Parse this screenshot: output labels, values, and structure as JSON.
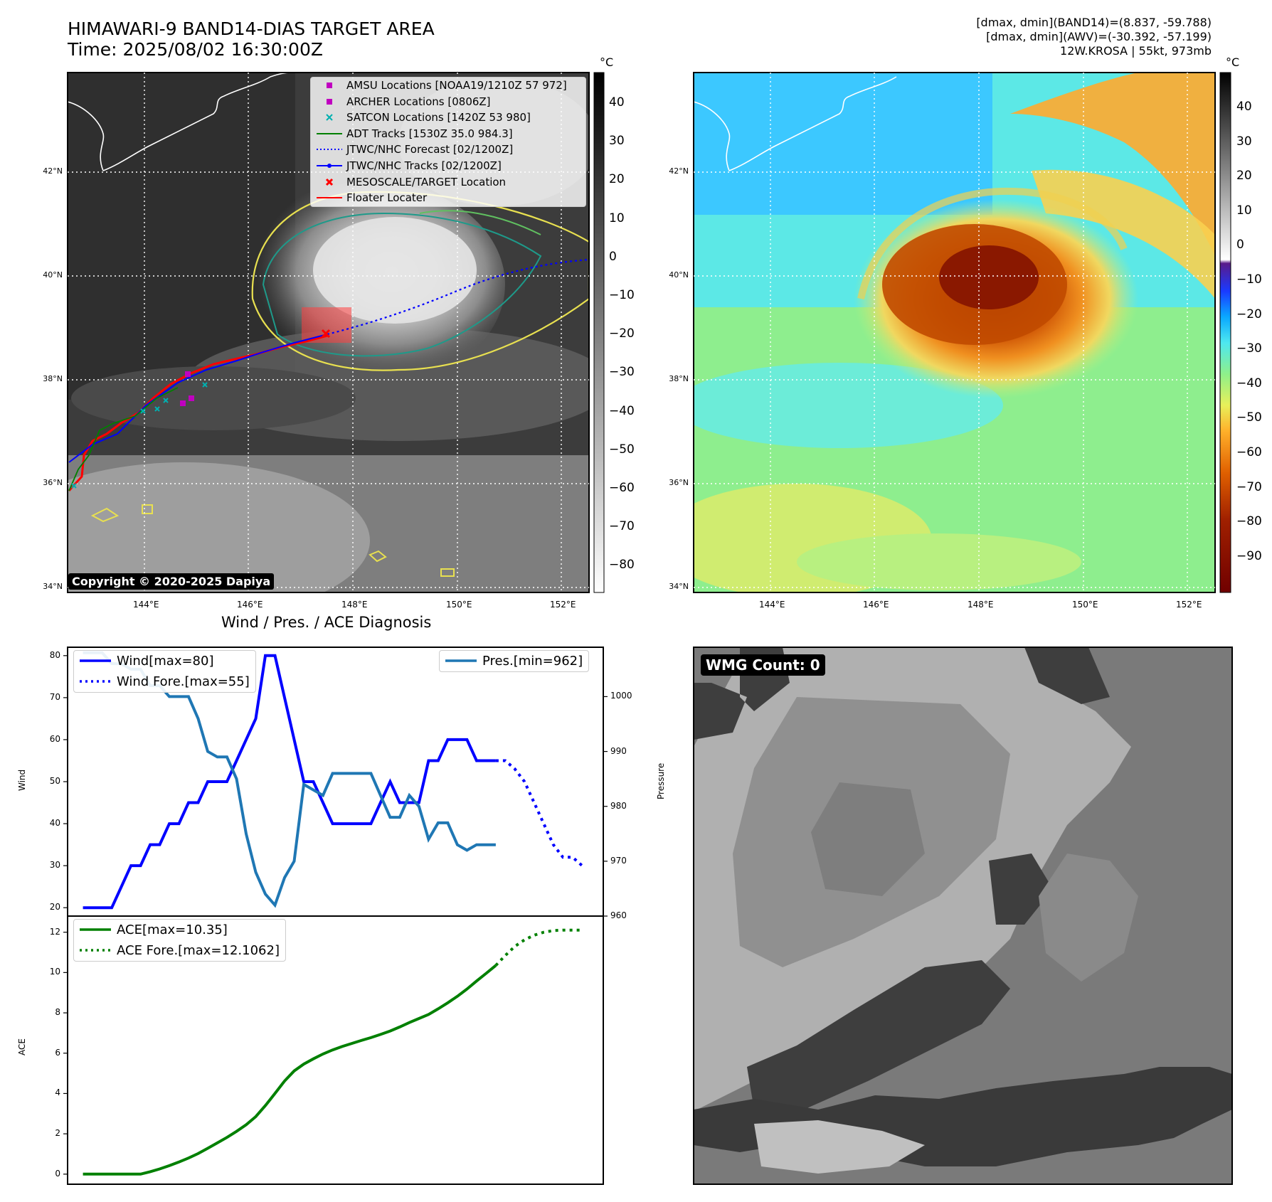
{
  "header": {
    "title_line1": "HIMAWARI-9 BAND14-DIAS TARGET AREA",
    "title_line2": "Time: 2025/08/02 16:30:00Z",
    "info_line1": "[dmax, dmin](BAND14)=(8.837, -59.788)",
    "info_line2": "[dmax, dmin](AWV)=(-30.392, -57.199)",
    "info_line3": "12W.KROSA | 55kt, 973mb"
  },
  "map": {
    "lon_labels": [
      "144°E",
      "146°E",
      "148°E",
      "150°E",
      "152°E"
    ],
    "lat_labels": [
      "42°N",
      "40°N",
      "38°N",
      "36°N",
      "34°N"
    ],
    "colorbar_unit": "°C",
    "cb1_ticks": [
      "40",
      "30",
      "20",
      "10",
      "0",
      "−10",
      "−20",
      "−30",
      "−40",
      "−50",
      "−60",
      "−70",
      "−80"
    ],
    "cb2_ticks": [
      "40",
      "30",
      "20",
      "10",
      "0",
      "−10",
      "−20",
      "−30",
      "−40",
      "−50",
      "−60",
      "−70",
      "−80",
      "−90"
    ],
    "legend": [
      {
        "label": "AMSU Locations [NOAA19/1210Z 57 972]",
        "symbol": "square",
        "color": "#c000c0"
      },
      {
        "label": "ARCHER Locations [0806Z]",
        "symbol": "square",
        "color": "#c000c0"
      },
      {
        "label": "SATCON Locations [1420Z 53 980]",
        "symbol": "x",
        "color": "#00b0b0"
      },
      {
        "label": "ADT Tracks [1530Z 35.0 984.3]",
        "symbol": "line",
        "color": "#008000"
      },
      {
        "label": "JTWC/NHC Forecast [02/1200Z]",
        "symbol": "dotted",
        "color": "#0000ff"
      },
      {
        "label": "JTWC/NHC Tracks [02/1200Z]",
        "symbol": "line-dot",
        "color": "#0000ff"
      },
      {
        "label": "MESOSCALE/TARGET Location",
        "symbol": "x",
        "color": "#ff0000"
      },
      {
        "label": "Floater Locater",
        "symbol": "line",
        "color": "#ff0000"
      }
    ],
    "copyright": "Copyright © 2020-2025 Dapiya"
  },
  "wmg": {
    "label": "WMG Count: 0"
  },
  "chart_data": [
    {
      "type": "line",
      "title": "Wind / Pres. / ACE Diagnosis",
      "ylabel": "Wind",
      "ylabel_right": "Pressure",
      "ylim": [
        18,
        82
      ],
      "ylim_right": [
        960,
        1009
      ],
      "yticks": [
        20,
        30,
        40,
        50,
        60,
        70,
        80
      ],
      "yticks_right": [
        960,
        970,
        980,
        990,
        1000
      ],
      "series": [
        {
          "name": "Wind[max=80]",
          "axis": "left",
          "style": "solid",
          "color": "#0000ff",
          "x": [
            0,
            1,
            2,
            3,
            4,
            5,
            6,
            7,
            8,
            9,
            10,
            11,
            12,
            13,
            14,
            15,
            16,
            17,
            18,
            19,
            20,
            21,
            22,
            23,
            24,
            25,
            26,
            27,
            28,
            29,
            30,
            31,
            32,
            33,
            34,
            35,
            36,
            37,
            38,
            39,
            40,
            41,
            42,
            43
          ],
          "values": [
            20,
            20,
            20,
            20,
            25,
            30,
            30,
            35,
            35,
            40,
            40,
            45,
            45,
            50,
            50,
            50,
            55,
            60,
            65,
            80,
            80,
            70,
            60,
            50,
            50,
            45,
            40,
            40,
            40,
            40,
            40,
            45,
            50,
            45,
            45,
            45,
            55,
            55,
            60,
            60,
            60,
            55,
            55,
            55
          ]
        },
        {
          "name": "Wind Fore.[max=55]",
          "axis": "left",
          "style": "dotted",
          "color": "#0000ff",
          "x": [
            43,
            44,
            45,
            46,
            47,
            48,
            49,
            50,
            51,
            52
          ],
          "values": [
            55,
            55,
            53,
            50,
            45,
            40,
            35,
            32,
            32,
            30
          ]
        },
        {
          "name": "Pres.[min=962]",
          "axis": "right",
          "style": "solid",
          "color": "#1f77b4",
          "x": [
            0,
            1,
            2,
            3,
            4,
            5,
            6,
            7,
            8,
            9,
            10,
            11,
            12,
            13,
            14,
            15,
            16,
            17,
            18,
            19,
            20,
            21,
            22,
            23,
            24,
            25,
            26,
            27,
            28,
            29,
            30,
            31,
            32,
            33,
            34,
            35,
            36,
            37,
            38,
            39,
            40,
            41,
            42,
            43
          ],
          "values": [
            1008,
            1008,
            1008,
            1006,
            1006,
            1005,
            1005,
            1002,
            1002,
            1000,
            1000,
            1000,
            996,
            990,
            989,
            989,
            985,
            975,
            968,
            964,
            962,
            967,
            970,
            984,
            983,
            982,
            986,
            986,
            986,
            986,
            986,
            982,
            978,
            978,
            982,
            980,
            974,
            977,
            977,
            973,
            972,
            973,
            973,
            973
          ]
        }
      ]
    },
    {
      "type": "line",
      "ylabel": "ACE",
      "ylim": [
        -0.5,
        12.8
      ],
      "yticks": [
        0,
        2,
        4,
        6,
        8,
        10,
        12
      ],
      "series": [
        {
          "name": "ACE[max=10.35]",
          "style": "solid",
          "color": "#008000",
          "x": [
            0,
            1,
            2,
            3,
            4,
            5,
            6,
            7,
            8,
            9,
            10,
            11,
            12,
            13,
            14,
            15,
            16,
            17,
            18,
            19,
            20,
            21,
            22,
            23,
            24,
            25,
            26,
            27,
            28,
            29,
            30,
            31,
            32,
            33,
            34,
            35,
            36,
            37,
            38,
            39,
            40,
            41,
            42,
            43
          ],
          "values": [
            0,
            0,
            0,
            0,
            0,
            0,
            0,
            0.12,
            0.26,
            0.42,
            0.6,
            0.8,
            1.02,
            1.28,
            1.55,
            1.82,
            2.12,
            2.45,
            2.85,
            3.4,
            4.0,
            4.62,
            5.12,
            5.46,
            5.72,
            5.96,
            6.16,
            6.33,
            6.48,
            6.63,
            6.77,
            6.93,
            7.1,
            7.3,
            7.52,
            7.72,
            7.92,
            8.2,
            8.5,
            8.82,
            9.18,
            9.58,
            9.96,
            10.35
          ]
        },
        {
          "name": "ACE Fore.[max=12.1062]",
          "style": "dotted",
          "color": "#008000",
          "x": [
            43,
            44,
            45,
            46,
            47,
            48,
            49,
            50,
            51,
            52
          ],
          "values": [
            10.35,
            10.85,
            11.3,
            11.62,
            11.85,
            12.0,
            12.08,
            12.1062,
            12.1062,
            12.1062
          ]
        }
      ]
    }
  ]
}
